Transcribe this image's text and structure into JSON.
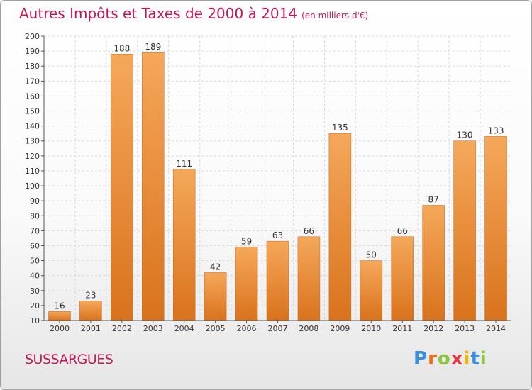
{
  "header": {
    "title": "Autres Impôts et Taxes de 2000 à 2014",
    "unit": "(en milliers d'€)"
  },
  "footer": {
    "commune": "SUSSARGUES",
    "logo": "Proxiti"
  },
  "colors": {
    "title": "#c2185b",
    "bar_light": "#f5a85a",
    "bar_dark": "#d9721c",
    "grid": "#d8d8d8"
  },
  "chart_data": {
    "type": "bar",
    "categories": [
      "2000",
      "2001",
      "2002",
      "2003",
      "2004",
      "2005",
      "2006",
      "2007",
      "2008",
      "2009",
      "2010",
      "2011",
      "2012",
      "2013",
      "2014"
    ],
    "values": [
      16,
      23,
      188,
      189,
      111,
      42,
      59,
      63,
      66,
      135,
      50,
      66,
      87,
      130,
      133
    ],
    "title": "Autres Impôts et Taxes de 2000 à 2014",
    "xlabel": "",
    "ylabel": "",
    "ylim": [
      10,
      200
    ],
    "yticks": [
      10,
      20,
      30,
      40,
      50,
      60,
      70,
      80,
      90,
      100,
      110,
      120,
      130,
      140,
      150,
      160,
      170,
      180,
      190,
      200
    ],
    "grid": true,
    "data_labels": true
  }
}
